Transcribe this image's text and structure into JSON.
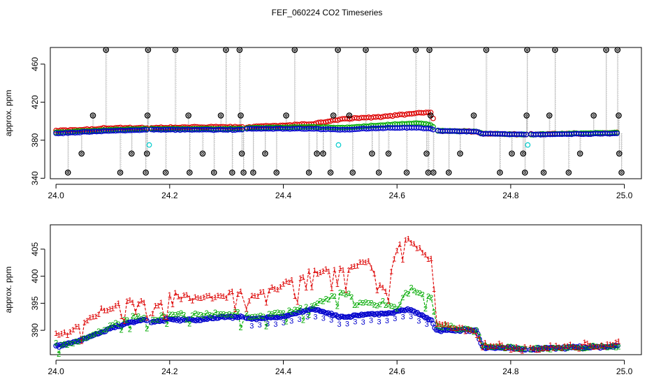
{
  "page_title": "FEF_060224  CO2 Timeseries",
  "chart_data": [
    {
      "type": "scatter",
      "name": "top-panel",
      "ylabel": "approx. ppm",
      "xlim": [
        23.99,
        25.03
      ],
      "ylim": [
        339.5,
        477.5
      ],
      "xticks": [
        24.0,
        24.2,
        24.4,
        24.6,
        24.8,
        25.0
      ],
      "xtick_labels": [
        "24.0",
        "24.2",
        "24.4",
        "24.6",
        "24.8",
        "25.0"
      ],
      "yticks": [
        340,
        380,
        420,
        460
      ],
      "ytick_labels": [
        "340",
        "380",
        "420",
        "460"
      ],
      "gap_ranges": [
        [
          24.162,
          24.168
        ],
        [
          24.328,
          24.333
        ],
        [
          24.665,
          24.671
        ],
        [
          24.828,
          24.834
        ]
      ],
      "series": [
        {
          "name": "red",
          "color": "#dd0000",
          "x": [
            24.0,
            24.1,
            24.16,
            24.17,
            24.25,
            24.33,
            24.34,
            24.45,
            24.5,
            24.58,
            24.64,
            24.66,
            24.67,
            24.74,
            24.75,
            24.83,
            24.99
          ],
          "y": [
            390,
            393,
            393,
            393,
            394,
            394,
            394,
            397,
            402,
            405,
            409,
            409,
            390,
            389,
            387,
            386,
            388
          ]
        },
        {
          "name": "green",
          "color": "#00aa00",
          "x": [
            24.0,
            24.1,
            24.16,
            24.17,
            24.25,
            24.33,
            24.34,
            24.45,
            24.5,
            24.58,
            24.64,
            24.66,
            24.67,
            24.74,
            24.75,
            24.83,
            24.99
          ],
          "y": [
            388,
            391,
            392,
            392,
            392,
            392,
            393,
            394,
            393,
            396,
            398,
            396,
            390,
            389,
            387,
            386,
            388
          ]
        },
        {
          "name": "blue",
          "color": "#0000cc",
          "x": [
            24.0,
            24.1,
            24.16,
            24.17,
            24.25,
            24.33,
            24.34,
            24.45,
            24.5,
            24.58,
            24.64,
            24.66,
            24.67,
            24.74,
            24.75,
            24.83,
            24.99
          ],
          "y": [
            387,
            390,
            391,
            391,
            391,
            391,
            392,
            392,
            391,
            393,
            393,
            392,
            390,
            389,
            387,
            386,
            387
          ]
        }
      ],
      "cyan_points": [
        {
          "x": 24.164,
          "y": 375
        },
        {
          "x": 24.497,
          "y": 375
        },
        {
          "x": 24.83,
          "y": 375
        }
      ],
      "spike_points": [
        {
          "x": 24.021,
          "y": 346
        },
        {
          "x": 24.045,
          "y": 366
        },
        {
          "x": 24.065,
          "y": 406
        },
        {
          "x": 24.088,
          "y": 475
        },
        {
          "x": 24.113,
          "y": 346
        },
        {
          "x": 24.133,
          "y": 366
        },
        {
          "x": 24.158,
          "y": 346
        },
        {
          "x": 24.16,
          "y": 366
        },
        {
          "x": 24.161,
          "y": 406
        },
        {
          "x": 24.162,
          "y": 475
        },
        {
          "x": 24.193,
          "y": 346
        },
        {
          "x": 24.21,
          "y": 475
        },
        {
          "x": 24.233,
          "y": 406
        },
        {
          "x": 24.235,
          "y": 346
        },
        {
          "x": 24.258,
          "y": 366
        },
        {
          "x": 24.278,
          "y": 346
        },
        {
          "x": 24.29,
          "y": 406
        },
        {
          "x": 24.299,
          "y": 475
        },
        {
          "x": 24.31,
          "y": 346
        },
        {
          "x": 24.323,
          "y": 475
        },
        {
          "x": 24.325,
          "y": 406
        },
        {
          "x": 24.327,
          "y": 366
        },
        {
          "x": 24.33,
          "y": 346
        },
        {
          "x": 24.347,
          "y": 346
        },
        {
          "x": 24.368,
          "y": 366
        },
        {
          "x": 24.388,
          "y": 346
        },
        {
          "x": 24.405,
          "y": 406
        },
        {
          "x": 24.42,
          "y": 475
        },
        {
          "x": 24.445,
          "y": 346
        },
        {
          "x": 24.459,
          "y": 366
        },
        {
          "x": 24.47,
          "y": 366
        },
        {
          "x": 24.483,
          "y": 346
        },
        {
          "x": 24.488,
          "y": 406
        },
        {
          "x": 24.496,
          "y": 475
        },
        {
          "x": 24.516,
          "y": 406
        },
        {
          "x": 24.522,
          "y": 346
        },
        {
          "x": 24.545,
          "y": 475
        },
        {
          "x": 24.556,
          "y": 366
        },
        {
          "x": 24.568,
          "y": 346
        },
        {
          "x": 24.585,
          "y": 366
        },
        {
          "x": 24.617,
          "y": 346
        },
        {
          "x": 24.633,
          "y": 475
        },
        {
          "x": 24.652,
          "y": 366
        },
        {
          "x": 24.655,
          "y": 346
        },
        {
          "x": 24.657,
          "y": 475
        },
        {
          "x": 24.659,
          "y": 406
        },
        {
          "x": 24.664,
          "y": 346
        },
        {
          "x": 24.691,
          "y": 346
        },
        {
          "x": 24.711,
          "y": 366
        },
        {
          "x": 24.735,
          "y": 406
        },
        {
          "x": 24.757,
          "y": 475
        },
        {
          "x": 24.781,
          "y": 346
        },
        {
          "x": 24.802,
          "y": 366
        },
        {
          "x": 24.822,
          "y": 366
        },
        {
          "x": 24.825,
          "y": 346
        },
        {
          "x": 24.828,
          "y": 406
        },
        {
          "x": 24.829,
          "y": 475
        },
        {
          "x": 24.858,
          "y": 346
        },
        {
          "x": 24.868,
          "y": 406
        },
        {
          "x": 24.878,
          "y": 475
        },
        {
          "x": 24.902,
          "y": 346
        },
        {
          "x": 24.922,
          "y": 366
        },
        {
          "x": 24.946,
          "y": 406
        },
        {
          "x": 24.968,
          "y": 475
        },
        {
          "x": 24.988,
          "y": 475
        },
        {
          "x": 24.99,
          "y": 406
        },
        {
          "x": 24.991,
          "y": 366
        },
        {
          "x": 24.995,
          "y": 346
        }
      ]
    },
    {
      "type": "line",
      "name": "bottom-panel",
      "ylabel": "approx. ppm",
      "xlim": [
        23.99,
        25.03
      ],
      "ylim": [
        385.5,
        409.5
      ],
      "xticks": [
        24.0,
        24.2,
        24.4,
        24.6,
        24.8,
        25.0
      ],
      "xtick_labels": [
        "24.0",
        "24.2",
        "24.4",
        "24.6",
        "24.8",
        "25.0"
      ],
      "yticks": [
        390,
        395,
        400,
        405
      ],
      "ytick_labels": [
        "390",
        "395",
        "400",
        "405"
      ],
      "gap_ranges": [
        [
          24.162,
          24.168
        ],
        [
          24.328,
          24.333
        ],
        [
          24.828,
          24.834
        ]
      ],
      "series": [
        {
          "name": "1",
          "label": "1",
          "color": "#dd0000",
          "x": [
            24.0,
            24.02,
            24.05,
            24.08,
            24.1,
            24.13,
            24.16,
            24.17,
            24.2,
            24.25,
            24.3,
            24.33,
            24.34,
            24.4,
            24.45,
            24.5,
            24.55,
            24.58,
            24.6,
            24.62,
            24.64,
            24.66,
            24.67,
            24.7,
            24.74,
            24.75,
            24.8,
            24.83,
            24.9,
            24.99
          ],
          "y": [
            389.5,
            389.5,
            391.5,
            393.5,
            394.5,
            395.5,
            395.5,
            393.5,
            396.5,
            396.0,
            396.5,
            397.5,
            396.0,
            398.5,
            400.5,
            401.5,
            402.5,
            397.0,
            405.0,
            406.5,
            405.0,
            403.0,
            391.5,
            390.5,
            389.5,
            387.5,
            386.8,
            386.5,
            387.0,
            387.5
          ]
        },
        {
          "name": "2",
          "label": "2",
          "color": "#00aa00",
          "x": [
            24.0,
            24.02,
            24.05,
            24.08,
            24.1,
            24.13,
            24.16,
            24.17,
            24.2,
            24.25,
            24.3,
            24.33,
            24.34,
            24.4,
            24.45,
            24.5,
            24.55,
            24.58,
            24.6,
            24.62,
            24.64,
            24.66,
            24.67,
            24.7,
            24.74,
            24.75,
            24.8,
            24.83,
            24.9,
            24.99
          ],
          "y": [
            387.5,
            387.5,
            388.5,
            390.0,
            391.0,
            392.5,
            392.5,
            392.0,
            393.0,
            393.0,
            393.0,
            393.5,
            392.5,
            393.5,
            394.5,
            397.0,
            395.0,
            395.0,
            394.0,
            398.0,
            397.0,
            396.0,
            391.0,
            390.5,
            390.0,
            387.0,
            386.8,
            386.5,
            386.8,
            387.0
          ]
        },
        {
          "name": "3",
          "label": "3",
          "color": "#0000cc",
          "x": [
            24.0,
            24.02,
            24.05,
            24.08,
            24.1,
            24.13,
            24.16,
            24.17,
            24.2,
            24.25,
            24.3,
            24.33,
            24.34,
            24.4,
            24.45,
            24.5,
            24.55,
            24.58,
            24.6,
            24.62,
            24.64,
            24.66,
            24.67,
            24.7,
            24.74,
            24.75,
            24.8,
            24.83,
            24.9,
            24.99
          ],
          "y": [
            387.0,
            387.5,
            388.5,
            389.5,
            390.5,
            391.5,
            392.0,
            391.5,
            392.0,
            392.0,
            392.5,
            392.5,
            392.0,
            392.5,
            394.0,
            392.5,
            393.0,
            393.0,
            393.5,
            394.0,
            393.0,
            392.0,
            390.0,
            390.0,
            390.0,
            386.8,
            386.7,
            386.5,
            386.8,
            387.0
          ]
        }
      ]
    }
  ]
}
